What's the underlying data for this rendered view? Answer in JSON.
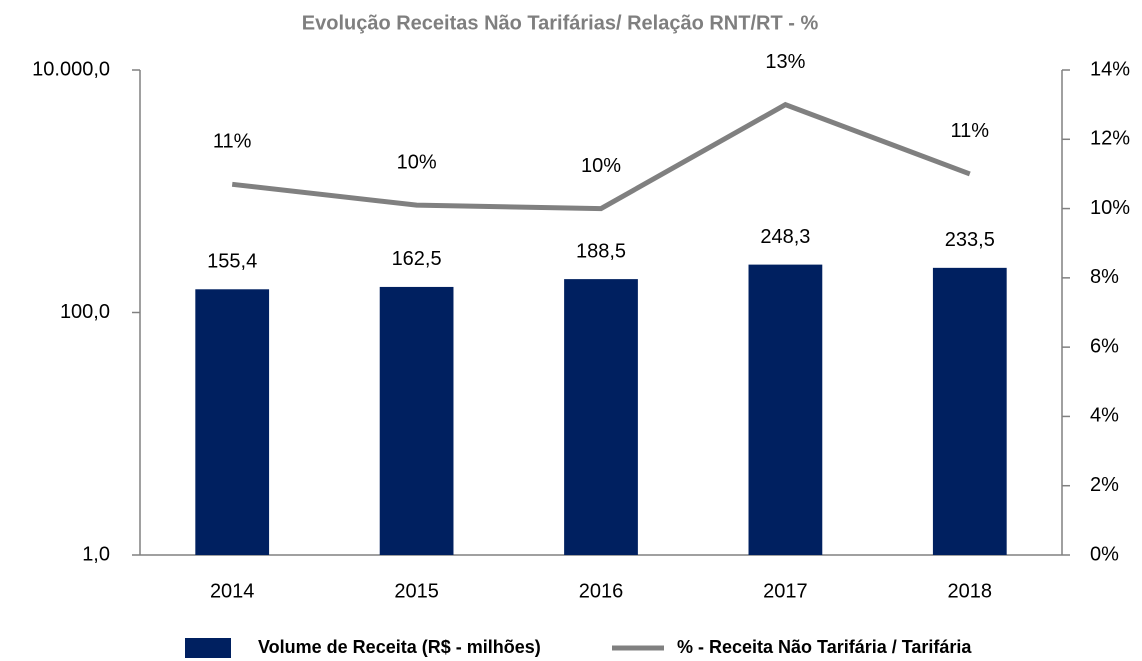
{
  "chart_data": {
    "type": "combo",
    "title": "Evolução  Receitas Não Tarifárias/ Relação RNT/RT  - %",
    "categories": [
      "2014",
      "2015",
      "2016",
      "2017",
      "2018"
    ],
    "series": [
      {
        "name": "Volume de Receita  (R$ - milhões)",
        "type": "bar",
        "axis": "y",
        "color": "#002060",
        "values": [
          155.4,
          162.5,
          188.5,
          248.3,
          233.5
        ],
        "value_labels": [
          "155,4",
          "162,5",
          "188,5",
          "248,3",
          "233,5"
        ]
      },
      {
        "name": "% - Receita Não Tarifária / Tarifária",
        "type": "line",
        "axis": "y2",
        "color": "#808080",
        "values": [
          10.7,
          10.1,
          10.0,
          13.0,
          11.0
        ],
        "value_labels": [
          "11%",
          "10%",
          "10%",
          "13%",
          "11%"
        ]
      }
    ],
    "ylim": [
      1,
      10000
    ],
    "log_scale": "y",
    "yticks": [
      {
        "value": 1,
        "label": "1,0"
      },
      {
        "value": 100,
        "label": "100,0"
      },
      {
        "value": 10000,
        "label": "10.000,0"
      }
    ],
    "y2lim": [
      0,
      14
    ],
    "y2ticks": [
      {
        "value": 0,
        "label": "0%"
      },
      {
        "value": 2,
        "label": "2%"
      },
      {
        "value": 4,
        "label": "4%"
      },
      {
        "value": 6,
        "label": "6%"
      },
      {
        "value": 8,
        "label": "8%"
      },
      {
        "value": 10,
        "label": "10%"
      },
      {
        "value": 12,
        "label": "12%"
      },
      {
        "value": 14,
        "label": "14%"
      }
    ],
    "legend": "bottom"
  }
}
